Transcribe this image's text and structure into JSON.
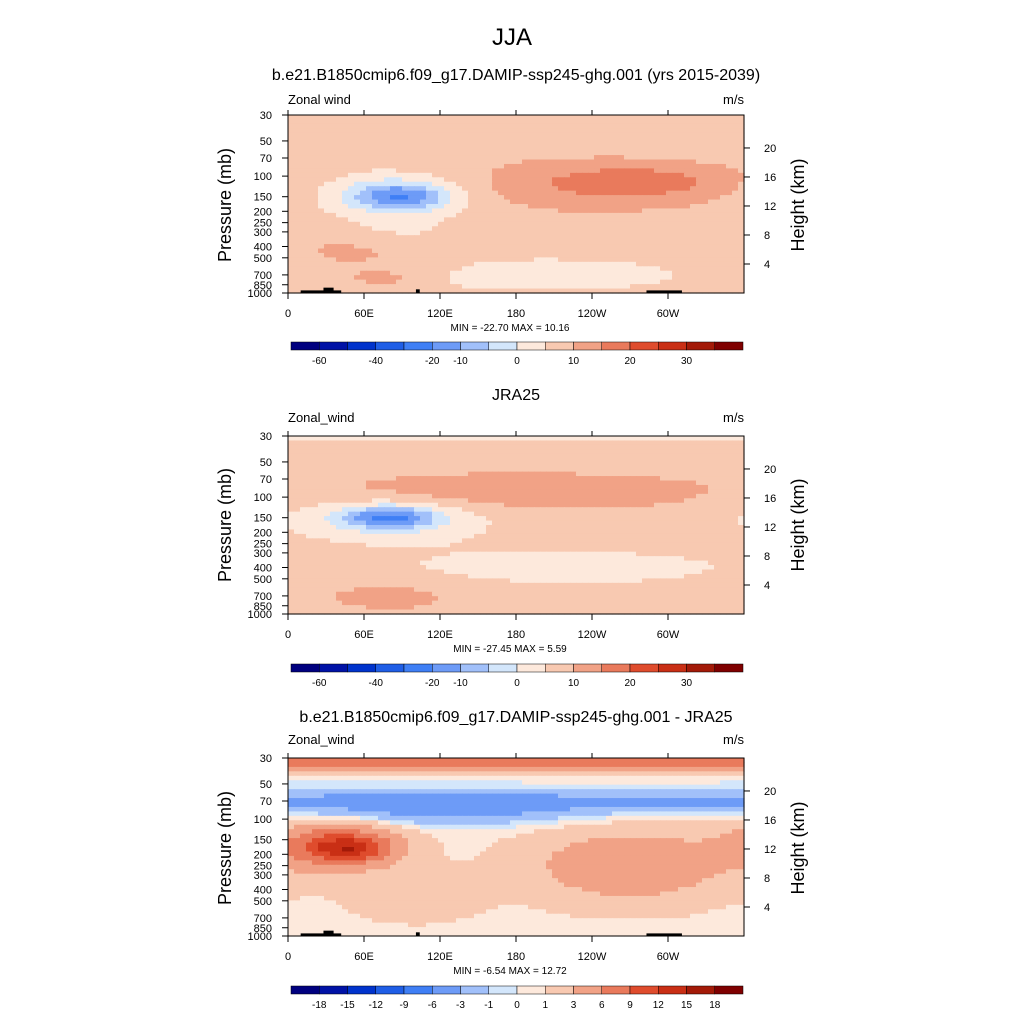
{
  "figure": {
    "title": "JJA",
    "colors": {
      "wind_levels": [
        "#00007f",
        "#0012a6",
        "#0033cc",
        "#1f5ee6",
        "#3f7ff5",
        "#6d9bf7",
        "#a1c0fa",
        "#d3e6fb",
        "#fde9dc",
        "#f8c9b1",
        "#f1a286",
        "#e97a5c",
        "#df4c2d",
        "#c92f15",
        "#a31a08",
        "#7f0000"
      ],
      "land": "#000000"
    }
  },
  "colorbar_wind": {
    "labels": [
      "-60",
      "-40",
      "-20",
      "-10",
      "0",
      "10",
      "20",
      "30"
    ],
    "label_after_box": [
      1,
      3,
      5,
      6,
      8,
      10,
      12,
      14
    ]
  },
  "colorbar_diff": {
    "labels": [
      "-18",
      "-15",
      "-12",
      "-9",
      "-6",
      "-3",
      "-1",
      "0",
      "1",
      "3",
      "6",
      "9",
      "12",
      "15",
      "18"
    ],
    "label_after_box": [
      1,
      2,
      3,
      4,
      5,
      6,
      7,
      8,
      9,
      10,
      11,
      12,
      13,
      14,
      15
    ]
  },
  "chart_data": [
    {
      "type": "heatmap",
      "title": "b.e21.B1850cmip6.f09_g17.DAMIP-ssp245-ghg.001 (yrs 2015-2039)",
      "left_label": "Zonal wind",
      "right_label": "m/s",
      "ylabel": "Pressure (mb)",
      "ylabel_right": "Height (km)",
      "x_ticks": [
        "0",
        "60E",
        "120E",
        "180",
        "120W",
        "60W"
      ],
      "x_tick_values": [
        0,
        60,
        120,
        180,
        240,
        300
      ],
      "xlim": [
        0,
        360
      ],
      "y_ticks": [
        "30",
        "50",
        "70",
        "100",
        "150",
        "200",
        "250",
        "300",
        "400",
        "500",
        "700",
        "850",
        "1000"
      ],
      "y_tick_values": [
        30,
        50,
        70,
        100,
        150,
        200,
        250,
        300,
        400,
        500,
        700,
        850,
        1000
      ],
      "ylim": [
        1000,
        30
      ],
      "height_ticks": [
        "20",
        "16",
        "12",
        "8",
        "4"
      ],
      "height_tick_values": [
        20,
        16,
        12,
        8,
        4
      ],
      "stats": "MIN = -22.70  MAX =  10.16",
      "min": -22.7,
      "max": 10.16,
      "background_value": 3,
      "features": [
        {
          "lon": 90,
          "p": 150,
          "dlon": 26,
          "dp": 0.18,
          "v": -16
        },
        {
          "lon": 82,
          "p": 140,
          "dlon": 45,
          "dp": 0.32,
          "v": -9
        },
        {
          "lon": 85,
          "p": 300,
          "dlon": 35,
          "dp": 0.3,
          "v": -4
        },
        {
          "lon": 200,
          "p": 700,
          "dlon": 140,
          "dp": 0.4,
          "v": -4
        },
        {
          "lon": 240,
          "p": 120,
          "dlon": 80,
          "dp": 0.35,
          "v": 6
        },
        {
          "lon": 280,
          "p": 110,
          "dlon": 45,
          "dp": 0.2,
          "v": 6
        },
        {
          "lon": 60,
          "p": 450,
          "dlon": 40,
          "dp": 0.3,
          "v": 5
        },
        {
          "lon": 75,
          "p": 750,
          "dlon": 20,
          "dp": 0.1,
          "v": 6
        }
      ]
    },
    {
      "type": "heatmap",
      "title": "JRA25",
      "left_label": "Zonal_wind",
      "right_label": "m/s",
      "ylabel": "Pressure (mb)",
      "ylabel_right": "Height (km)",
      "x_ticks": [
        "0",
        "60E",
        "120E",
        "180",
        "120W",
        "60W"
      ],
      "x_tick_values": [
        0,
        60,
        120,
        180,
        240,
        300
      ],
      "xlim": [
        0,
        360
      ],
      "y_ticks": [
        "30",
        "50",
        "70",
        "100",
        "150",
        "200",
        "250",
        "300",
        "400",
        "500",
        "700",
        "850",
        "1000"
      ],
      "y_tick_values": [
        30,
        50,
        70,
        100,
        150,
        200,
        250,
        300,
        400,
        500,
        700,
        850,
        1000
      ],
      "ylim": [
        1000,
        30
      ],
      "height_ticks": [
        "20",
        "16",
        "12",
        "8",
        "4"
      ],
      "height_tick_values": [
        20,
        16,
        12,
        8,
        4
      ],
      "stats": "MIN = -27.45  MAX =   5.59",
      "min": -27.45,
      "max": 5.59,
      "background_value": 3,
      "features": [
        {
          "lon": 0,
          "p": 30,
          "dlon": 900,
          "dp": 0.07,
          "v": -4
        },
        {
          "lon": 80,
          "p": 150,
          "dlon": 25,
          "dp": 0.15,
          "v": -17
        },
        {
          "lon": 78,
          "p": 150,
          "dlon": 55,
          "dp": 0.3,
          "v": -9
        },
        {
          "lon": 220,
          "p": 400,
          "dlon": 150,
          "dp": 0.4,
          "v": -4
        },
        {
          "lon": 180,
          "p": 90,
          "dlon": 110,
          "dp": 0.25,
          "v": 6
        },
        {
          "lon": 80,
          "p": 700,
          "dlon": 40,
          "dp": 0.2,
          "v": 5
        }
      ]
    },
    {
      "type": "heatmap",
      "title": "b.e21.B1850cmip6.f09_g17.DAMIP-ssp245-ghg.001 - JRA25",
      "left_label": "Zonal_wind",
      "right_label": "m/s",
      "ylabel": "Pressure (mb)",
      "ylabel_right": "Height (km)",
      "x_ticks": [
        "0",
        "60E",
        "120E",
        "180",
        "120W",
        "60W"
      ],
      "x_tick_values": [
        0,
        60,
        120,
        180,
        240,
        300
      ],
      "xlim": [
        0,
        360
      ],
      "y_ticks": [
        "30",
        "50",
        "70",
        "100",
        "150",
        "200",
        "250",
        "300",
        "400",
        "500",
        "700",
        "850",
        "1000"
      ],
      "y_tick_values": [
        30,
        50,
        70,
        100,
        150,
        200,
        250,
        300,
        400,
        500,
        700,
        850,
        1000
      ],
      "ylim": [
        1000,
        30
      ],
      "height_ticks": [
        "20",
        "16",
        "12",
        "8",
        "4"
      ],
      "height_tick_values": [
        20,
        16,
        12,
        8,
        4
      ],
      "stats": "MIN =  -6.54  MAX =  12.72",
      "min": -6.54,
      "max": 12.72,
      "background_value": 0.5,
      "features": [
        {
          "lon": 0,
          "p": 33,
          "dlon": 900,
          "dp": 0.09,
          "v": 9
        },
        {
          "lon": 0,
          "p": 70,
          "dlon": 900,
          "dp": 0.18,
          "v": -4
        },
        {
          "lon": 130,
          "p": 90,
          "dlon": 70,
          "dp": 0.18,
          "v": -3
        },
        {
          "lon": 40,
          "p": 170,
          "dlon": 32,
          "dp": 0.3,
          "v": 10
        },
        {
          "lon": 50,
          "p": 180,
          "dlon": 20,
          "dp": 0.15,
          "v": 5
        },
        {
          "lon": 270,
          "p": 250,
          "dlon": 55,
          "dp": 0.5,
          "v": 5
        },
        {
          "lon": 100,
          "p": 450,
          "dlon": 35,
          "dp": 0.35,
          "v": 2
        }
      ]
    }
  ],
  "land_blocks": [
    {
      "lon0": 10,
      "lon1": 42,
      "p0": 1000,
      "p1": 950
    },
    {
      "lon0": 28,
      "lon1": 36,
      "p0": 1000,
      "p1": 900
    },
    {
      "lon0": 101,
      "lon1": 104,
      "p0": 1000,
      "p1": 930
    },
    {
      "lon0": 283,
      "lon1": 311,
      "p0": 1000,
      "p1": 950
    }
  ]
}
